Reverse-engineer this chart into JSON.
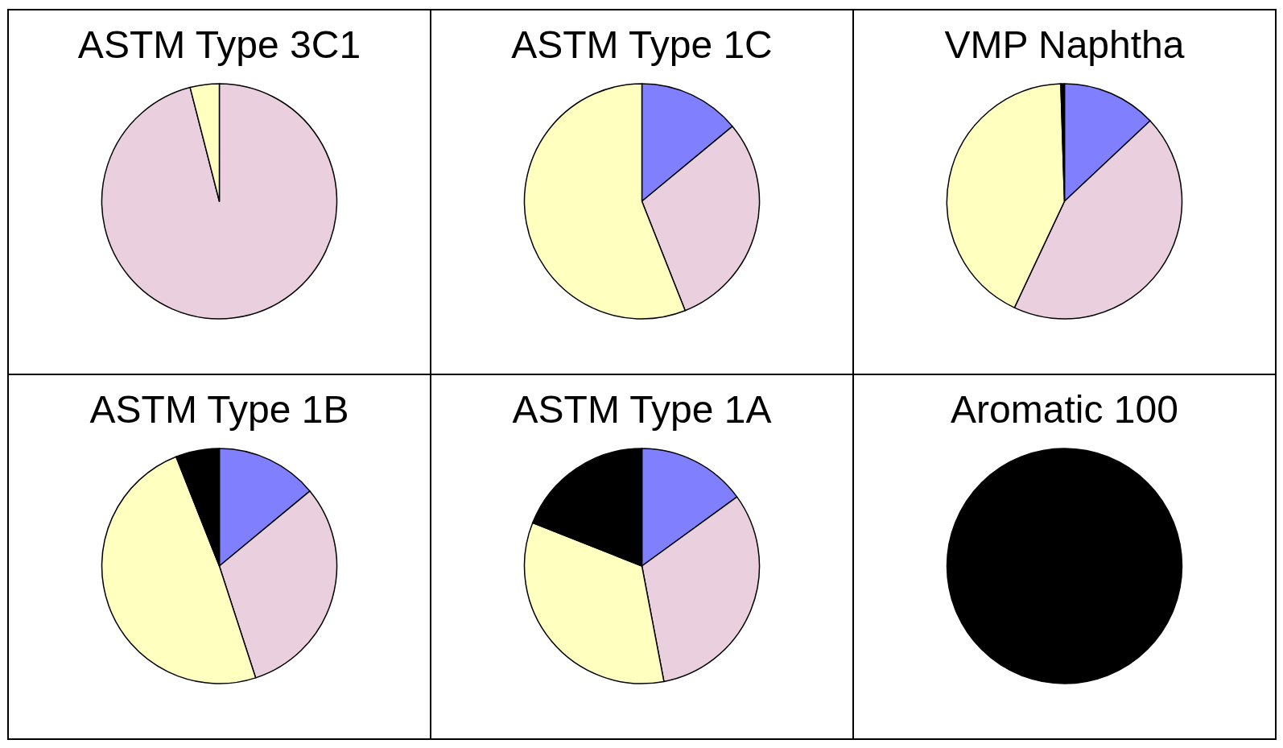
{
  "chart_data": [
    {
      "type": "pie",
      "title": "ASTM Type 3C1",
      "categories": [
        null,
        null
      ],
      "values": [
        96,
        4
      ],
      "colors": [
        "#ead0de",
        "#ffffc0"
      ]
    },
    {
      "type": "pie",
      "title": "ASTM Type 1C",
      "categories": [
        null,
        null,
        null
      ],
      "values": [
        14,
        30,
        56
      ],
      "colors": [
        "#8080ff",
        "#ead0de",
        "#ffffc0"
      ]
    },
    {
      "type": "pie",
      "title": "VMP Naphtha",
      "categories": [
        null,
        null,
        null,
        null
      ],
      "values": [
        13,
        44,
        42.5,
        0.5
      ],
      "colors": [
        "#8080ff",
        "#ead0de",
        "#ffffc0",
        "#000000"
      ]
    },
    {
      "type": "pie",
      "title": "ASTM Type 1B",
      "categories": [
        null,
        null,
        null,
        null
      ],
      "values": [
        14,
        31,
        49,
        6
      ],
      "colors": [
        "#8080ff",
        "#ead0de",
        "#ffffc0",
        "#000000"
      ]
    },
    {
      "type": "pie",
      "title": "ASTM Type 1A",
      "categories": [
        null,
        null,
        null,
        null
      ],
      "values": [
        15,
        32,
        34,
        19
      ],
      "colors": [
        "#8080ff",
        "#ead0de",
        "#ffffc0",
        "#000000"
      ]
    },
    {
      "type": "pie",
      "title": "Aromatic 100",
      "categories": [
        null
      ],
      "values": [
        100
      ],
      "colors": [
        "#000000"
      ]
    }
  ]
}
